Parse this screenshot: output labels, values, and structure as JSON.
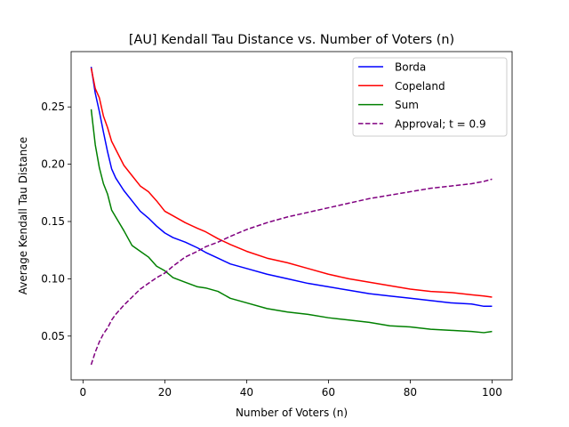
{
  "chart_data": {
    "type": "line",
    "title": "[AU] Kendall Tau Distance vs. Number of Voters (n)",
    "xlabel": "Number of Voters (n)",
    "ylabel": "Average Kendall Tau Distance",
    "xlim": [
      -2.9,
      104.9
    ],
    "ylim": [
      0.0118,
      0.2983
    ],
    "xticks": [
      0,
      20,
      40,
      60,
      80,
      100
    ],
    "yticks": [
      0.05,
      0.1,
      0.15,
      0.2,
      0.25
    ],
    "xtick_labels": [
      "0",
      "20",
      "40",
      "60",
      "80",
      "100"
    ],
    "ytick_labels": [
      "0.05",
      "0.10",
      "0.15",
      "0.20",
      "0.25"
    ],
    "grid": false,
    "legend_position": "upper right",
    "series": [
      {
        "name": "Borda",
        "color": "#0000ff",
        "dash": "solid",
        "x": [
          2,
          3,
          4,
          5,
          6,
          7,
          8,
          10,
          12,
          14,
          16,
          18,
          20,
          22,
          25,
          28,
          30,
          33,
          36,
          40,
          45,
          50,
          55,
          60,
          65,
          70,
          75,
          80,
          85,
          90,
          95,
          98,
          100
        ],
        "y": [
          0.285,
          0.262,
          0.246,
          0.228,
          0.211,
          0.196,
          0.188,
          0.177,
          0.168,
          0.159,
          0.153,
          0.146,
          0.14,
          0.136,
          0.132,
          0.127,
          0.123,
          0.118,
          0.113,
          0.109,
          0.104,
          0.1,
          0.096,
          0.093,
          0.09,
          0.087,
          0.085,
          0.083,
          0.081,
          0.079,
          0.078,
          0.076,
          0.076
        ]
      },
      {
        "name": "Copeland",
        "color": "#ff0000",
        "dash": "solid",
        "x": [
          2,
          3,
          4,
          5,
          6,
          7,
          8,
          10,
          12,
          14,
          16,
          18,
          20,
          22,
          25,
          28,
          30,
          33,
          36,
          40,
          45,
          50,
          55,
          60,
          65,
          70,
          75,
          80,
          85,
          90,
          95,
          98,
          100
        ],
        "y": [
          0.284,
          0.266,
          0.258,
          0.242,
          0.232,
          0.22,
          0.213,
          0.199,
          0.19,
          0.181,
          0.176,
          0.168,
          0.159,
          0.155,
          0.149,
          0.144,
          0.141,
          0.135,
          0.13,
          0.124,
          0.118,
          0.114,
          0.109,
          0.104,
          0.1,
          0.097,
          0.094,
          0.091,
          0.089,
          0.088,
          0.086,
          0.085,
          0.084
        ]
      },
      {
        "name": "Sum",
        "color": "#008000",
        "dash": "solid",
        "x": [
          2,
          3,
          4,
          5,
          6,
          7,
          8,
          10,
          12,
          14,
          16,
          18,
          20,
          22,
          25,
          28,
          30,
          33,
          36,
          40,
          45,
          50,
          55,
          60,
          65,
          70,
          75,
          80,
          85,
          90,
          95,
          98,
          100
        ],
        "y": [
          0.248,
          0.217,
          0.197,
          0.183,
          0.174,
          0.16,
          0.154,
          0.142,
          0.129,
          0.124,
          0.119,
          0.111,
          0.107,
          0.101,
          0.097,
          0.093,
          0.092,
          0.089,
          0.083,
          0.079,
          0.074,
          0.071,
          0.069,
          0.066,
          0.064,
          0.062,
          0.059,
          0.058,
          0.056,
          0.055,
          0.054,
          0.053,
          0.054
        ]
      },
      {
        "name": "Approval; t = 0.9",
        "color": "#800080",
        "dash": "dashed",
        "x": [
          2,
          3,
          4,
          5,
          6,
          7,
          8,
          10,
          12,
          14,
          16,
          18,
          20,
          22,
          25,
          28,
          30,
          33,
          36,
          40,
          45,
          50,
          55,
          60,
          65,
          70,
          75,
          80,
          85,
          90,
          95,
          98,
          100
        ],
        "y": [
          0.025,
          0.036,
          0.045,
          0.052,
          0.057,
          0.064,
          0.069,
          0.077,
          0.084,
          0.091,
          0.096,
          0.101,
          0.105,
          0.111,
          0.119,
          0.124,
          0.128,
          0.132,
          0.137,
          0.143,
          0.149,
          0.154,
          0.158,
          0.162,
          0.166,
          0.17,
          0.173,
          0.176,
          0.179,
          0.181,
          0.183,
          0.185,
          0.187
        ]
      }
    ]
  }
}
